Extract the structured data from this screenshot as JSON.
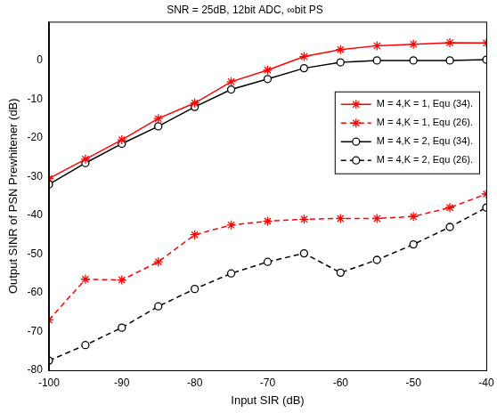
{
  "chart_data": {
    "type": "line",
    "title": "SNR = 25dB, 12bit ADC, ∞bit PS",
    "x_label": "Input SIR (dB)",
    "y_label": "Output SINR of PSN Prewhitener (dB)",
    "x": [
      -100,
      -95,
      -90,
      -85,
      -80,
      -75,
      -70,
      -65,
      -60,
      -55,
      -50,
      -45,
      -40
    ],
    "xlim": [
      -100,
      -40
    ],
    "xticks": [
      -100,
      -90,
      -80,
      -70,
      -60,
      -50,
      -40
    ],
    "ylim": [
      -80,
      10
    ],
    "yticks": [
      -80,
      -70,
      -60,
      -50,
      -40,
      -30,
      -20,
      -10,
      0
    ],
    "grid": false,
    "legend": "upper right",
    "series": [
      {
        "name": "M = 4,K = 1, Equ (34).",
        "color": "#ff0000",
        "marker": "star",
        "line_style": "solid",
        "values": [
          -30.5,
          -25.5,
          -20.5,
          -15,
          -11,
          -5.5,
          -2.5,
          1,
          2.8,
          3.8,
          4.2,
          4.6,
          4.5
        ]
      },
      {
        "name": "M = 4,K = 1, Equ (26).",
        "color": "#ff0000",
        "marker": "star",
        "line_style": "dashed",
        "values": [
          -67,
          -56.5,
          -56.7,
          -52,
          -45,
          -42.5,
          -41.5,
          -41,
          -40.8,
          -40.8,
          -40.3,
          -38,
          -34.5
        ]
      },
      {
        "name": "M = 4,K = 2, Equ (34).",
        "color": "#000000",
        "marker": "circle",
        "line_style": "solid",
        "values": [
          -32,
          -26.5,
          -21.5,
          -17,
          -12,
          -7.5,
          -4.8,
          -2,
          -0.5,
          0,
          0,
          0,
          0.2
        ]
      },
      {
        "name": "M = 4,K = 2, Equ (26).",
        "color": "#000000",
        "marker": "circle",
        "line_style": "dashed",
        "values": [
          -77.5,
          -73.5,
          -69,
          -63.5,
          -59,
          -55,
          -52,
          -49.8,
          -54.8,
          -51.5,
          -47.5,
          -43,
          -38
        ]
      }
    ]
  }
}
